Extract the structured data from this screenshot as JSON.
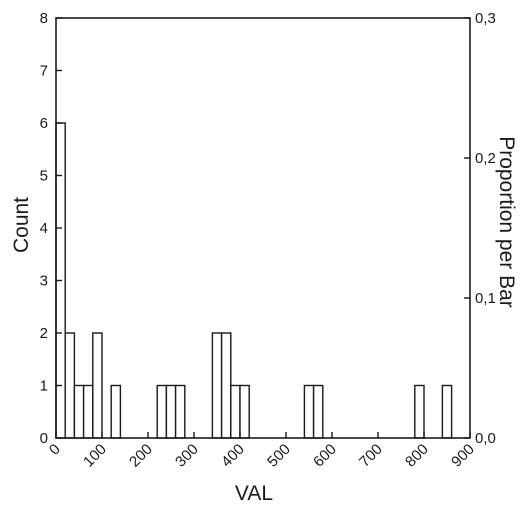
{
  "chart_data": {
    "type": "bar",
    "subtype": "histogram",
    "xlabel": "VAL",
    "ylabel": "Count",
    "y2label": "Proportion per Bar",
    "xlim": [
      0,
      900
    ],
    "ylim": [
      0,
      8
    ],
    "y2lim": [
      0,
      0.3
    ],
    "grid": false,
    "xticks": [
      "0",
      "100",
      "200",
      "300",
      "400",
      "500",
      "600",
      "700",
      "800",
      "900"
    ],
    "yticks": [
      "0",
      "1",
      "2",
      "3",
      "4",
      "5",
      "6",
      "7",
      "8"
    ],
    "y2ticks": [
      "0,0",
      "0,1",
      "0,2",
      "0,3"
    ],
    "bins": [
      {
        "x0": 0,
        "x1": 20,
        "count": 6
      },
      {
        "x0": 20,
        "x1": 40,
        "count": 2
      },
      {
        "x0": 40,
        "x1": 60,
        "count": 1
      },
      {
        "x0": 60,
        "x1": 80,
        "count": 1
      },
      {
        "x0": 80,
        "x1": 100,
        "count": 2
      },
      {
        "x0": 120,
        "x1": 140,
        "count": 1
      },
      {
        "x0": 220,
        "x1": 240,
        "count": 1
      },
      {
        "x0": 240,
        "x1": 260,
        "count": 1
      },
      {
        "x0": 260,
        "x1": 280,
        "count": 1
      },
      {
        "x0": 340,
        "x1": 360,
        "count": 2
      },
      {
        "x0": 360,
        "x1": 380,
        "count": 2
      },
      {
        "x0": 380,
        "x1": 400,
        "count": 1
      },
      {
        "x0": 400,
        "x1": 420,
        "count": 1
      },
      {
        "x0": 540,
        "x1": 560,
        "count": 1
      },
      {
        "x0": 560,
        "x1": 580,
        "count": 1
      },
      {
        "x0": 780,
        "x1": 800,
        "count": 1
      },
      {
        "x0": 840,
        "x1": 860,
        "count": 1
      }
    ]
  }
}
